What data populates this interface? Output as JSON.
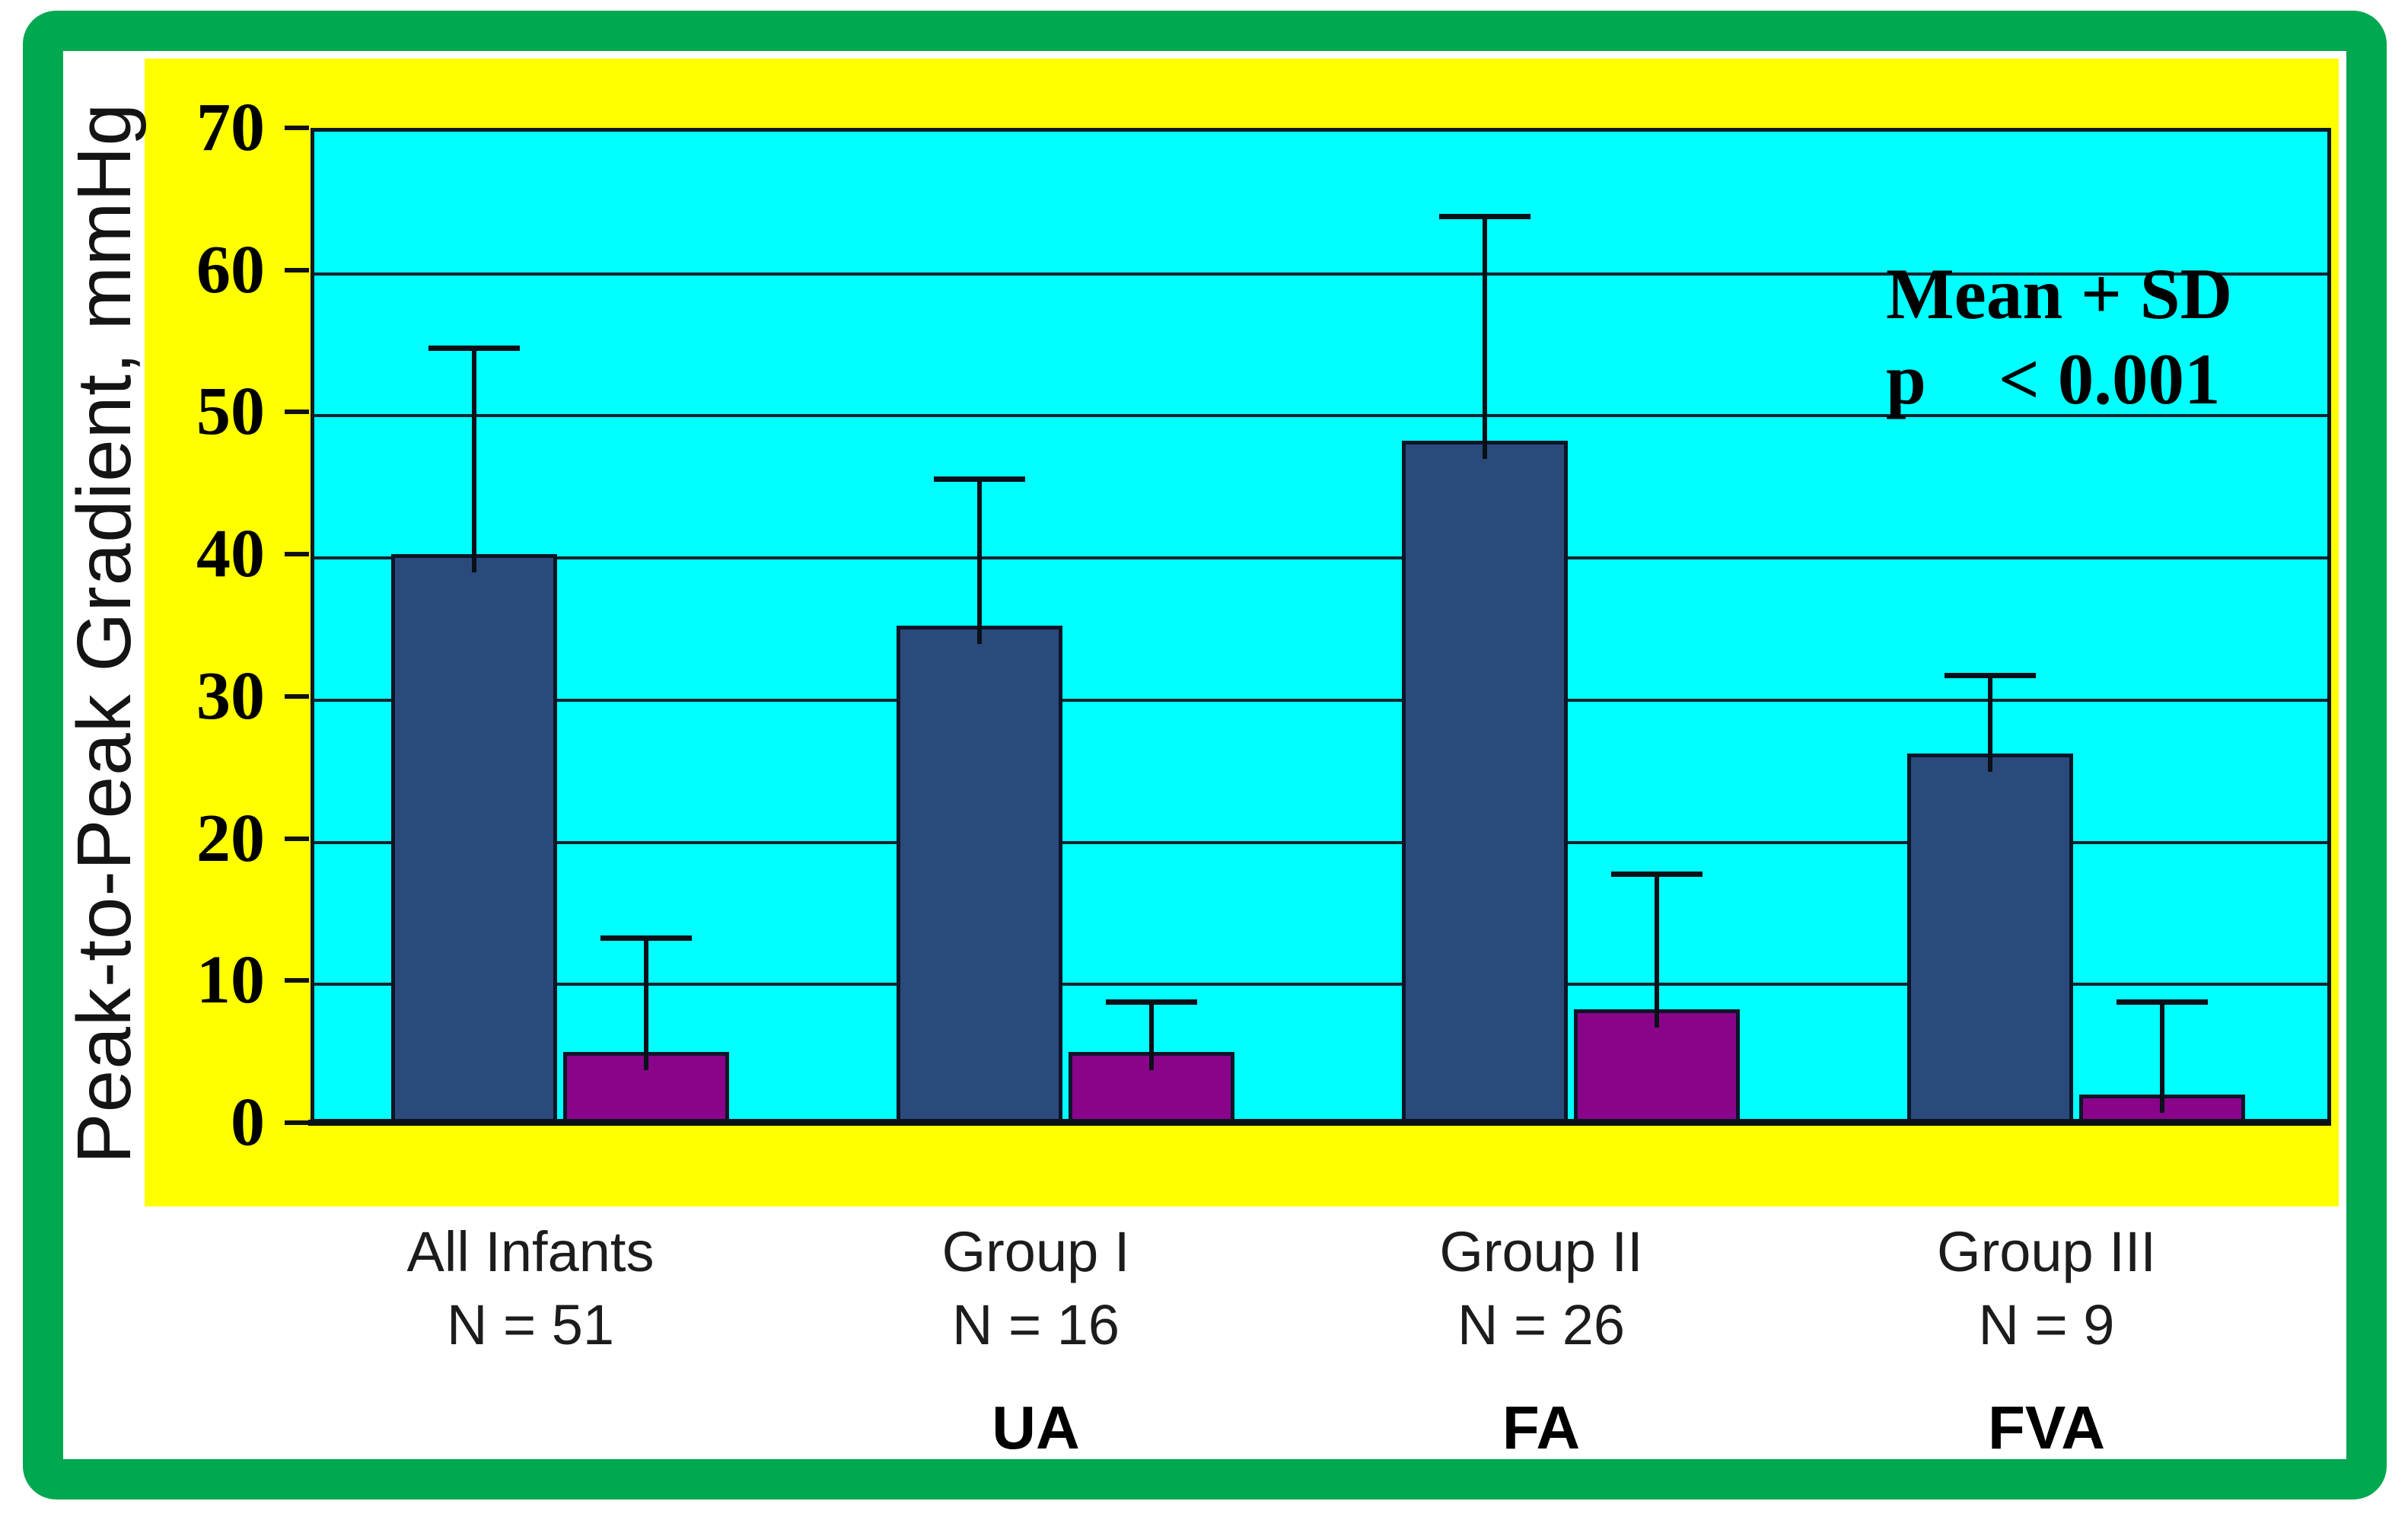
{
  "chart_data": {
    "type": "bar",
    "ylabel": "Peak-to-Peak Gradient, mmHg",
    "ylim": [
      0,
      70
    ],
    "yticks": [
      0,
      10,
      20,
      30,
      40,
      50,
      60,
      70
    ],
    "grid": true,
    "legend_position": "none",
    "categories": [
      {
        "label": "All Infants",
        "n_label": "N = 51",
        "sub_label": ""
      },
      {
        "label": "Group I",
        "n_label": "N = 16",
        "sub_label": "UA"
      },
      {
        "label": "Group II",
        "n_label": "N = 26",
        "sub_label": "FA"
      },
      {
        "label": "Group III",
        "n_label": "N = 9",
        "sub_label": "FVA"
      }
    ],
    "series": [
      {
        "name": "blue-bars",
        "color": "#2B4A7C",
        "values": [
          40,
          35,
          48,
          26
        ],
        "error_top": [
          54.5,
          45.3,
          63.8,
          31.5
        ]
      },
      {
        "name": "purple-bars",
        "color": "#8A048A",
        "values": [
          5,
          5,
          8,
          2
        ],
        "error_top": [
          13,
          8.5,
          17.5,
          8.5
        ]
      }
    ],
    "annotation": {
      "line1": "Mean + SD",
      "line2": "p    < 0.001"
    }
  },
  "colors": {
    "frame_green": "#00A84F",
    "panel_yellow": "#FFFF00",
    "plot_cyan": "#00FFFF",
    "bar_blue": "#2B4A7C",
    "bar_purple": "#8A048A",
    "line_black": "#0a1018"
  }
}
